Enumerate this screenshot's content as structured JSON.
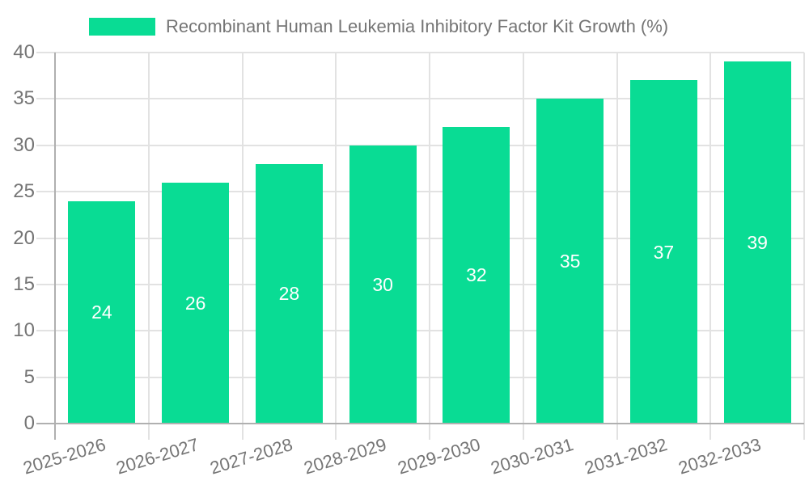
{
  "chart_data": {
    "type": "bar",
    "series_name": "Recombinant Human Leukemia Inhibitory Factor Kit Growth (%)",
    "categories": [
      "2025-2026",
      "2026-2027",
      "2027-2028",
      "2028-2029",
      "2029-2030",
      "2030-2031",
      "2031-2032",
      "2032-2033"
    ],
    "values": [
      24,
      26,
      28,
      30,
      32,
      35,
      37,
      39
    ],
    "title": "",
    "xlabel": "",
    "ylabel": "",
    "ylim": [
      0,
      40
    ],
    "yticks": [
      0,
      5,
      10,
      15,
      20,
      25,
      30,
      35,
      40
    ],
    "grid": true,
    "legend_position": "top",
    "value_labels": "inside-center",
    "colors": {
      "bar": "#09dc94",
      "axis_text": "#757575",
      "grid_line": "#e2e2e2",
      "axis_line": "#b0b0b0",
      "bar_value_text": "#ffffff"
    }
  }
}
